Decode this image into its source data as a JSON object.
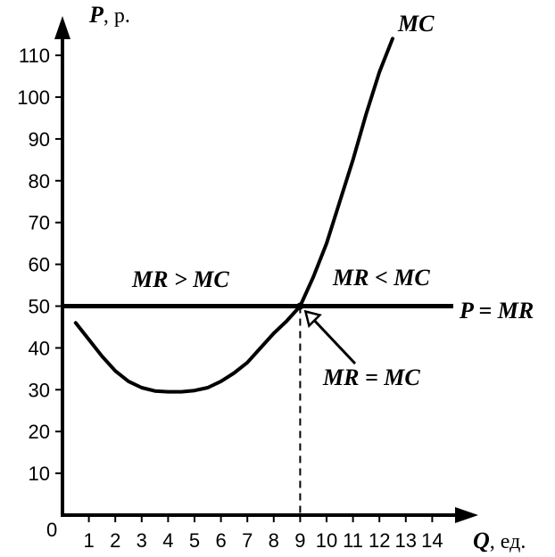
{
  "chart_data": {
    "type": "line",
    "y_label_var": "P",
    "y_label_unit": ", р.",
    "x_label_var": "Q",
    "x_label_unit": ", ед.",
    "origin_label": "0",
    "xlim": [
      0,
      15
    ],
    "ylim": [
      0,
      120
    ],
    "x_ticks": [
      "1",
      "2",
      "3",
      "4",
      "5",
      "6",
      "7",
      "8",
      "9",
      "10",
      "11",
      "12",
      "13",
      "14"
    ],
    "y_ticks": [
      "10",
      "20",
      "30",
      "40",
      "50",
      "60",
      "70",
      "80",
      "90",
      "100",
      "110"
    ],
    "grid": false,
    "series": [
      {
        "name": "MC",
        "x": [
          0.5,
          1.0,
          1.5,
          2.0,
          2.5,
          3.0,
          3.5,
          4.0,
          4.5,
          5.0,
          5.5,
          6.0,
          6.5,
          7.0,
          7.5,
          8.0,
          8.5,
          9.0,
          9.5,
          10.0,
          10.5,
          11.0,
          11.5,
          12.0,
          12.5
        ],
        "y": [
          46,
          42,
          38,
          34.5,
          32,
          30.5,
          29.7,
          29.5,
          29.5,
          29.8,
          30.5,
          32,
          34,
          36.5,
          40,
          43.5,
          46.5,
          50,
          57,
          65,
          75,
          85,
          96,
          106,
          114
        ]
      },
      {
        "name": "P = MR",
        "x": [
          0,
          15
        ],
        "y": [
          50,
          50
        ]
      }
    ],
    "annotations": [
      {
        "text": "MR > MC",
        "x": 2.2,
        "y": 56
      },
      {
        "text": "MR < MC",
        "x": 11.5,
        "y": 56
      },
      {
        "text": "MR = MC",
        "x": 11.2,
        "y": 33
      },
      {
        "text": "P = MR",
        "x": 15.0,
        "y": 49
      },
      {
        "text": "MC",
        "x": 13.5,
        "y": 117
      }
    ],
    "intersection": {
      "x": 9,
      "y": 50
    }
  }
}
